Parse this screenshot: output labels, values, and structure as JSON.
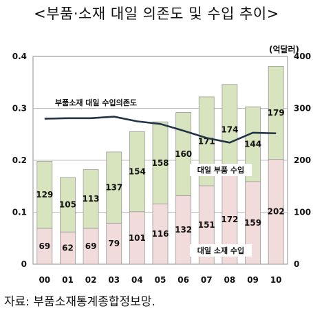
{
  "title": "<부품·소재 대일 의존도 및 수입 추이>",
  "source": "자료: 부품소재통계종합정보망.",
  "chart_data": {
    "type": "bar",
    "stacked": true,
    "categories": [
      "00",
      "01",
      "02",
      "03",
      "04",
      "05",
      "06",
      "07",
      "08",
      "09",
      "10"
    ],
    "series": [
      {
        "name": "대일 소재 수입",
        "values": [
          69,
          62,
          69,
          79,
          101,
          116,
          132,
          151,
          172,
          159,
          202
        ],
        "color": "#f2dcdb",
        "axis": "right"
      },
      {
        "name": "대일 부품 수입",
        "values": [
          129,
          105,
          113,
          137,
          154,
          158,
          160,
          171,
          174,
          144,
          179
        ],
        "color": "#d7e4bd",
        "axis": "right"
      },
      {
        "name": "부품소재 대일 수입의존도",
        "type": "line",
        "values": [
          0.28,
          0.281,
          0.281,
          0.284,
          0.275,
          0.27,
          0.257,
          0.243,
          0.234,
          0.253,
          0.252
        ],
        "color": "#243447",
        "axis": "left"
      }
    ],
    "y_left": {
      "ylim": [
        0,
        0.4
      ],
      "ticks": [
        "0",
        "0.1",
        "0.2",
        "0.3",
        "0.4"
      ]
    },
    "y_right": {
      "ylim": [
        0,
        400
      ],
      "ticks": [
        "0",
        "100",
        "200",
        "300",
        "400"
      ],
      "unit_label": "(억달러)"
    },
    "grid": true
  }
}
